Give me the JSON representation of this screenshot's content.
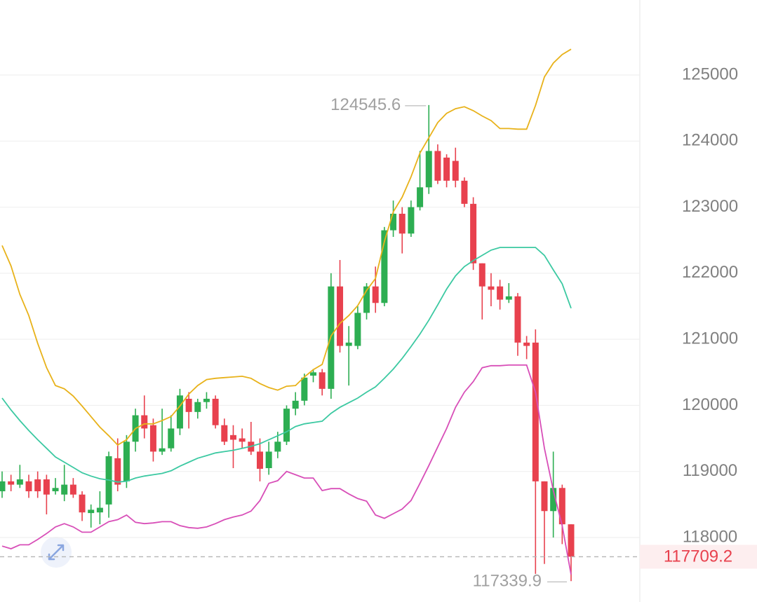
{
  "chart_data": {
    "type": "candlestick",
    "up_color": "#2dae52",
    "down_color": "#e8414e",
    "ylim": [
      117024,
      126135
    ],
    "yticks": [
      125000,
      124000,
      123000,
      122000,
      121000,
      120000,
      119000,
      118000
    ],
    "grid": true,
    "open": [
      118700,
      118850,
      118800,
      118850,
      118880,
      118880,
      118700,
      118650,
      118800,
      118650,
      118370,
      118380,
      118500,
      119200,
      118850,
      119450,
      119850,
      119700,
      119300,
      119350,
      119650,
      120100,
      119900,
      120050,
      120100,
      119700,
      119550,
      119500,
      119450,
      119300,
      119050,
      119300,
      119450,
      119950,
      120070,
      120450,
      120500,
      120250,
      121800,
      120900,
      120900,
      121400,
      121800,
      121550,
      122650,
      122900,
      122600,
      123000,
      123300,
      123850,
      123750,
      123700,
      123400,
      123050,
      122150,
      121800,
      121800,
      121600,
      121650,
      120950,
      120950,
      118850,
      118400,
      118750,
      118200
    ],
    "high": [
      119000,
      118950,
      119100,
      118950,
      119000,
      118950,
      118900,
      119100,
      118900,
      118700,
      118500,
      118700,
      119300,
      119500,
      119550,
      119950,
      120150,
      119800,
      119950,
      119850,
      120250,
      120200,
      120100,
      120200,
      120150,
      119800,
      119700,
      119650,
      119750,
      119500,
      119450,
      119600,
      120000,
      120200,
      120480,
      120550,
      120550,
      122000,
      122200,
      121200,
      121500,
      121850,
      122100,
      122700,
      123100,
      123000,
      123100,
      123850,
      124545.6,
      123950,
      123800,
      123900,
      123450,
      123150,
      122150,
      122000,
      121900,
      121850,
      121700,
      121050,
      121150,
      118850,
      119300,
      118800,
      118200
    ],
    "low": [
      118600,
      118700,
      118750,
      118600,
      118600,
      118350,
      118650,
      118550,
      118600,
      118250,
      118150,
      118200,
      118300,
      118700,
      118750,
      119300,
      119500,
      119150,
      119250,
      119300,
      119550,
      119650,
      119800,
      119950,
      119650,
      119400,
      119050,
      119350,
      119250,
      118850,
      118950,
      119200,
      119400,
      119850,
      120000,
      120350,
      120150,
      120100,
      120800,
      120300,
      120850,
      121300,
      121400,
      121500,
      122550,
      122300,
      122550,
      122950,
      123200,
      123350,
      123300,
      123300,
      123000,
      122050,
      121300,
      121500,
      121450,
      121550,
      120750,
      120700,
      117450,
      117600,
      118000,
      117900,
      117339.9
    ],
    "close": [
      118850,
      118800,
      118880,
      118700,
      118700,
      118650,
      118750,
      118800,
      118650,
      118380,
      118420,
      118450,
      119230,
      118800,
      119450,
      119850,
      119650,
      119300,
      119350,
      119650,
      120150,
      119900,
      120050,
      120100,
      119700,
      119450,
      119480,
      119450,
      119300,
      119040,
      119300,
      119450,
      119950,
      120070,
      120420,
      120500,
      120250,
      121800,
      120900,
      120950,
      121400,
      121800,
      121550,
      122650,
      122900,
      122600,
      123000,
      123300,
      123850,
      123400,
      123400,
      123400,
      123050,
      122150,
      121800,
      121750,
      121600,
      121650,
      120950,
      120900,
      118850,
      118400,
      118750,
      118200,
      117709.2
    ],
    "series": [
      {
        "color": "#e8b21a",
        "values": [
          122420,
          122110,
          121680,
          121360,
          120940,
          120570,
          120300,
          120250,
          120140,
          119990,
          119830,
          119670,
          119540,
          119400,
          119480,
          119650,
          119720,
          119720,
          119770,
          119830,
          119990,
          120170,
          120300,
          120390,
          120410,
          120420,
          120430,
          120440,
          120410,
          120330,
          120270,
          120230,
          120290,
          120300,
          120430,
          120540,
          120620,
          121050,
          121240,
          121360,
          121510,
          121740,
          121920,
          122480,
          122930,
          123150,
          123460,
          123820,
          124050,
          124280,
          124420,
          124490,
          124520,
          124460,
          124380,
          124310,
          124190,
          124190,
          124180,
          124180,
          124540,
          124970,
          125180,
          125310,
          125390
        ]
      },
      {
        "color": "#3cc9a2",
        "values": [
          120110,
          119930,
          119770,
          119620,
          119480,
          119350,
          119220,
          119140,
          119060,
          118980,
          118930,
          118890,
          118870,
          118840,
          118850,
          118900,
          118930,
          118950,
          118970,
          119010,
          119080,
          119140,
          119200,
          119240,
          119280,
          119300,
          119320,
          119350,
          119380,
          119420,
          119480,
          119540,
          119600,
          119680,
          119720,
          119740,
          119760,
          119880,
          119970,
          120040,
          120110,
          120200,
          120280,
          120410,
          120550,
          120710,
          120890,
          121080,
          121290,
          121520,
          121760,
          121960,
          122100,
          122190,
          122270,
          122350,
          122390,
          122390,
          122390,
          122390,
          122390,
          122270,
          122050,
          121840,
          121470
        ]
      },
      {
        "color": "#d84fb8",
        "values": [
          117870,
          117830,
          117890,
          117890,
          117970,
          118060,
          118160,
          118210,
          118160,
          118080,
          118080,
          118160,
          118240,
          118270,
          118340,
          118230,
          118210,
          118220,
          118240,
          118240,
          118180,
          118150,
          118140,
          118160,
          118210,
          118270,
          118310,
          118340,
          118400,
          118560,
          118820,
          118860,
          119000,
          118950,
          118900,
          118900,
          118710,
          118740,
          118740,
          118660,
          118590,
          118550,
          118340,
          118290,
          118360,
          118430,
          118560,
          118820,
          119090,
          119370,
          119650,
          119970,
          120200,
          120360,
          120570,
          120600,
          120600,
          120610,
          120610,
          120610,
          120200,
          119350,
          118710,
          118180,
          117440
        ]
      }
    ]
  }
}
